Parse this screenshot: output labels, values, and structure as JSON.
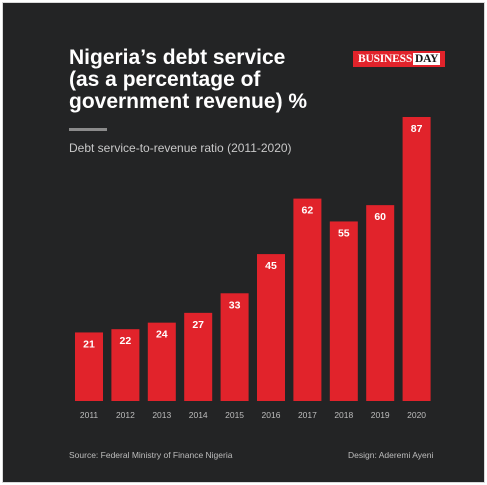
{
  "title_lines": [
    "Nigeria’s debt service",
    "(as a percentage of",
    "government revenue) %"
  ],
  "brand": {
    "left": "BUSINESS",
    "right": "DAY"
  },
  "subtitle": "Debt service-to-revenue ratio (2011-2020)",
  "footer": {
    "source": "Source: Federal Ministry of Finance Nigeria",
    "design": "Design: Aderemi Ayeni"
  },
  "colors": {
    "background": "#232425",
    "bar": "#e1232b",
    "bar_label": "#ffffff",
    "tick_label": "#bdbdbd"
  },
  "chart_data": {
    "type": "bar",
    "categories": [
      "2011",
      "2012",
      "2013",
      "2014",
      "2015",
      "2016",
      "2017",
      "2018",
      "2019",
      "2020"
    ],
    "values": [
      21,
      22,
      24,
      27,
      33,
      45,
      62,
      55,
      60,
      87
    ],
    "title": "Nigeria’s debt service (as a percentage of government revenue) %",
    "subtitle": "Debt service-to-revenue ratio (2011-2020)",
    "xlabel": "",
    "ylabel": "",
    "ylim": [
      0,
      87
    ],
    "grid": false,
    "legend": "none",
    "data_labels": true
  }
}
